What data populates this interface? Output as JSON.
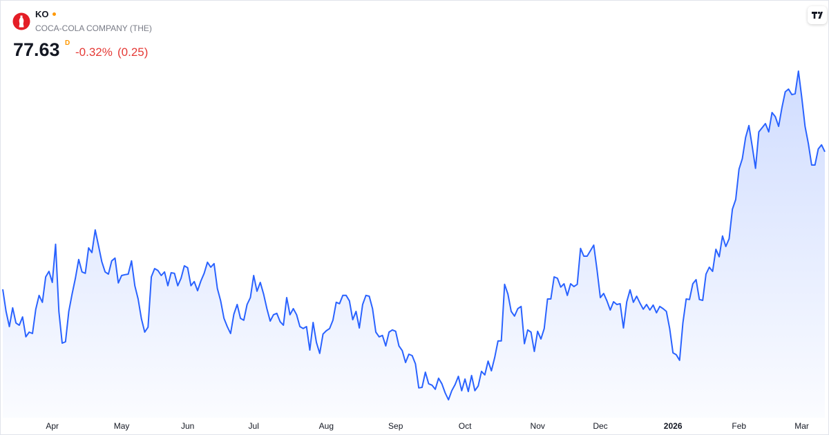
{
  "header": {
    "symbol": "KO",
    "name": "COCA-COLA COMPANY (THE)",
    "price": "77.63",
    "interval": "D",
    "change_pct": "-0.32%",
    "change_abs": "(0.25)"
  },
  "chart_data": {
    "type": "area",
    "color": "#2962ff",
    "ylim": [
      68,
      82
    ],
    "categories": [
      null,
      null,
      null,
      null,
      null,
      null,
      null,
      null,
      null,
      null,
      null,
      null,
      null,
      null,
      null,
      "Apr",
      null,
      null,
      null,
      null,
      null,
      null,
      null,
      null,
      null,
      null,
      null,
      null,
      null,
      null,
      null,
      null,
      null,
      null,
      null,
      null,
      "May",
      null,
      null,
      null,
      null,
      null,
      null,
      null,
      null,
      null,
      null,
      null,
      null,
      null,
      null,
      null,
      null,
      null,
      null,
      null,
      "Jun",
      null,
      null,
      null,
      null,
      null,
      null,
      null,
      null,
      null,
      null,
      null,
      null,
      null,
      null,
      null,
      null,
      null,
      null,
      null,
      "Jul",
      null,
      null,
      null,
      null,
      null,
      null,
      null,
      null,
      null,
      null,
      null,
      null,
      null,
      null,
      null,
      null,
      null,
      null,
      null,
      null,
      null,
      "Aug",
      null,
      null,
      null,
      null,
      null,
      null,
      null,
      null,
      null,
      null,
      null,
      null,
      null,
      null,
      null,
      null,
      null,
      null,
      null,
      null,
      "Sep",
      null,
      null,
      null,
      null,
      null,
      null,
      null,
      null,
      null,
      null,
      null,
      null,
      null,
      null,
      null,
      null,
      null,
      null,
      null,
      null,
      "Oct",
      null,
      null,
      null,
      null,
      null,
      null,
      null,
      null,
      null,
      null,
      null,
      null,
      null,
      null,
      null,
      null,
      null,
      null,
      null,
      null,
      null,
      "Nov",
      null,
      null,
      null,
      null,
      null,
      null,
      null,
      null,
      null,
      null,
      null,
      null,
      null,
      null,
      null,
      null,
      null,
      null,
      "Dec",
      null,
      null,
      null,
      null,
      null,
      null,
      null,
      null,
      null,
      null,
      null,
      null,
      null,
      null,
      null,
      null,
      null,
      null,
      null,
      null,
      null,
      "2026",
      null,
      null,
      null,
      null,
      null,
      null,
      null,
      null,
      null,
      null,
      null,
      null,
      null,
      null,
      null,
      null,
      null,
      null,
      null,
      "Feb",
      null,
      null,
      null,
      null,
      null,
      null,
      null,
      null,
      null,
      null,
      null,
      null,
      null,
      null,
      null,
      null,
      null,
      null,
      "Mar",
      null,
      null,
      null,
      null,
      null,
      null,
      null
    ],
    "values": [
      72.65,
      71.85,
      71.3,
      71.98,
      71.43,
      71.35,
      71.65,
      70.93,
      71.1,
      71.05,
      71.93,
      72.43,
      72.18,
      73.1,
      73.3,
      72.9,
      74.28,
      71.85,
      70.7,
      70.75,
      71.85,
      72.48,
      73.05,
      73.73,
      73.28,
      73.23,
      74.15,
      73.98,
      74.8,
      74.23,
      73.65,
      73.28,
      73.2,
      73.68,
      73.78,
      72.88,
      73.15,
      73.18,
      73.2,
      73.68,
      72.78,
      72.3,
      71.58,
      71.1,
      71.28,
      73.1,
      73.4,
      73.33,
      73.15,
      73.28,
      72.78,
      73.25,
      73.23,
      72.78,
      73.05,
      73.5,
      73.43,
      72.78,
      72.93,
      72.6,
      72.95,
      73.23,
      73.63,
      73.45,
      73.58,
      72.68,
      72.23,
      71.6,
      71.3,
      71.05,
      71.75,
      72.1,
      71.6,
      71.53,
      72.1,
      72.35,
      73.15,
      72.58,
      72.9,
      72.48,
      71.95,
      71.5,
      71.73,
      71.78,
      71.48,
      71.35,
      72.35,
      71.73,
      71.95,
      71.73,
      71.3,
      71.23,
      71.3,
      70.45,
      71.45,
      70.73,
      70.33,
      71.03,
      71.15,
      71.23,
      71.53,
      72.18,
      72.13,
      72.43,
      72.43,
      72.23,
      71.55,
      71.85,
      71.25,
      72.1,
      72.43,
      72.4,
      71.95,
      71.1,
      70.93,
      70.98,
      70.6,
      71.1,
      71.18,
      71.13,
      70.6,
      70.43,
      70.0,
      70.3,
      70.25,
      69.95,
      69.08,
      69.1,
      69.65,
      69.23,
      69.18,
      69.03,
      69.43,
      69.23,
      68.9,
      68.65,
      68.98,
      69.2,
      69.5,
      68.98,
      69.4,
      68.95,
      69.53,
      68.98,
      69.15,
      69.68,
      69.55,
      70.05,
      69.7,
      70.18,
      70.78,
      70.78,
      72.83,
      72.48,
      71.85,
      71.68,
      71.95,
      72.03,
      70.68,
      71.18,
      71.1,
      70.4,
      71.13,
      70.85,
      71.23,
      72.3,
      72.3,
      73.1,
      73.05,
      72.73,
      72.85,
      72.43,
      72.85,
      72.75,
      72.83,
      74.13,
      73.85,
      73.85,
      74.05,
      74.25,
      73.35,
      72.35,
      72.5,
      72.23,
      71.9,
      72.2,
      72.1,
      72.13,
      71.25,
      72.2,
      72.63,
      72.18,
      72.4,
      72.15,
      71.93,
      72.1,
      71.9,
      72.08,
      71.8,
      72.03,
      71.95,
      71.85,
      71.23,
      70.35,
      70.28,
      70.08,
      71.43,
      72.3,
      72.28,
      72.85,
      73.0,
      72.28,
      72.25,
      73.2,
      73.45,
      73.3,
      74.1,
      73.83,
      74.58,
      74.2,
      74.48,
      75.55,
      75.9,
      77.0,
      77.38,
      78.15,
      78.58,
      77.83,
      77.03,
      78.35,
      78.5,
      78.65,
      78.35,
      79.05,
      78.9,
      78.55,
      79.23,
      79.8,
      79.9,
      79.7,
      79.73,
      80.55,
      79.6,
      78.55,
      77.93,
      77.15,
      77.15,
      77.73,
      77.88,
      77.63
    ]
  }
}
